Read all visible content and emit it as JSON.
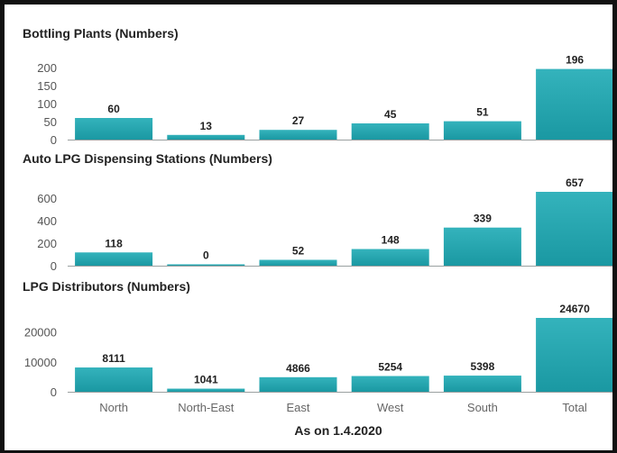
{
  "chart_data": [
    {
      "type": "bar",
      "title": "Bottling Plants (Numbers)",
      "categories": [
        "North",
        "North-East",
        "East",
        "West",
        "South",
        "Total"
      ],
      "values": [
        60,
        13,
        27,
        45,
        51,
        196
      ],
      "yticks": [
        0,
        50,
        100,
        150,
        200
      ],
      "ylim": [
        0,
        200
      ]
    },
    {
      "type": "bar",
      "title": "Auto LPG Dispensing Stations (Numbers)",
      "categories": [
        "North",
        "North-East",
        "East",
        "West",
        "South",
        "Total"
      ],
      "values": [
        118,
        0,
        52,
        148,
        339,
        657
      ],
      "yticks": [
        0,
        200,
        400,
        600
      ],
      "ylim": [
        0,
        657
      ]
    },
    {
      "type": "bar",
      "title": "LPG Distributors (Numbers)",
      "categories": [
        "North",
        "North-East",
        "East",
        "West",
        "South",
        "Total"
      ],
      "values": [
        8111,
        1041,
        4866,
        5254,
        5398,
        24670
      ],
      "yticks": [
        0,
        10000,
        20000
      ],
      "ylim": [
        0,
        24670
      ]
    }
  ],
  "footer": "As on 1.4.2020",
  "colors": {
    "bar": "#1a98a2",
    "bar_top": "#34b3bc",
    "axis": "#9aa0a0"
  }
}
